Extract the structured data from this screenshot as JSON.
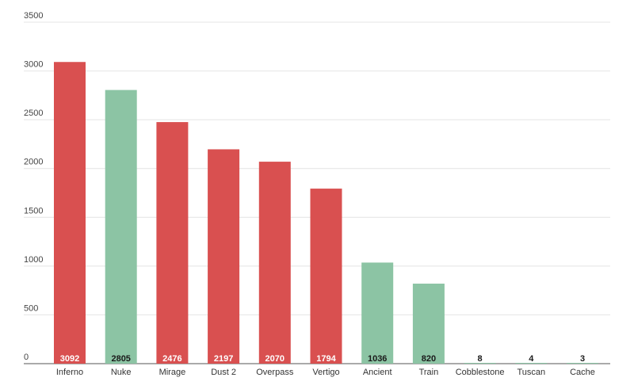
{
  "chart_data": {
    "type": "bar",
    "categories": [
      "Inferno",
      "Nuke",
      "Mirage",
      "Dust 2",
      "Overpass",
      "Vertigo",
      "Ancient",
      "Train",
      "Cobblestone",
      "Tuscan",
      "Cache"
    ],
    "values": [
      3092,
      2805,
      2476,
      2197,
      2070,
      1794,
      1036,
      820,
      8,
      4,
      3
    ],
    "bar_colors": [
      "#d95050",
      "#8cc4a4",
      "#d95050",
      "#d95050",
      "#d95050",
      "#d95050",
      "#8cc4a4",
      "#8cc4a4",
      "#8cc4a4",
      "#8cc4a4",
      "#8cc4a4"
    ],
    "ylim": [
      0,
      3500
    ],
    "yticks": [
      0,
      500,
      1000,
      1500,
      2000,
      2500,
      3000,
      3500
    ],
    "grid": true,
    "data_labels": true,
    "title": "",
    "xlabel": "",
    "ylabel": ""
  }
}
